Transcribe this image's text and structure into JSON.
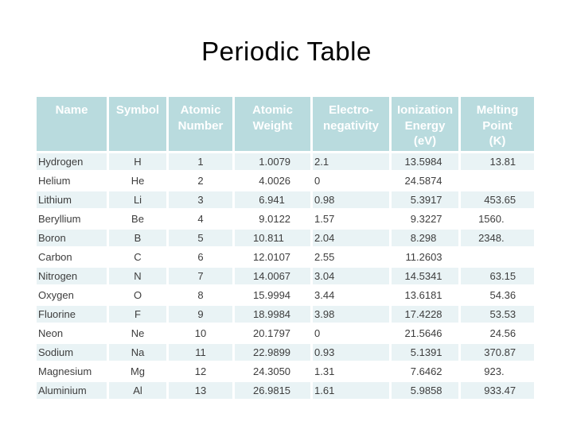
{
  "title": "Periodic Table",
  "theme": {
    "header_bg": "#b9dbde",
    "header_text": "#ffffff",
    "row_alt_bg": "#e9f3f5",
    "row_bg": "#ffffff",
    "cell_text": "#3d3d3d",
    "title_text": "#000000"
  },
  "table": {
    "columns": [
      {
        "key": "name",
        "label": "Name"
      },
      {
        "key": "symbol",
        "label": "Symbol"
      },
      {
        "key": "atomic-number",
        "label": "Atomic\nNumber"
      },
      {
        "key": "atomic-weight",
        "label": "Atomic\nWeight"
      },
      {
        "key": "electronegativity",
        "label": "Electro-\nnegativity"
      },
      {
        "key": "ionization-energy",
        "label": "Ionization\nEnergy\n(eV)"
      },
      {
        "key": "melting-point",
        "label": "Melting\nPoint\n(K)"
      }
    ],
    "rows": [
      [
        "Hydrogen",
        "H",
        "1",
        "1.0079",
        "2.1",
        "13.5984",
        "13.81"
      ],
      [
        "Helium",
        "He",
        "2",
        "4.0026",
        "0",
        "24.5874",
        ""
      ],
      [
        "Lithium",
        "Li",
        "3",
        "6.941",
        "0.98",
        "5.3917",
        "453.65"
      ],
      [
        "Beryllium",
        "Be",
        "4",
        "9.0122",
        "1.57",
        "9.3227",
        "1560."
      ],
      [
        "Boron",
        "B",
        "5",
        "10.811",
        "2.04",
        "8.298",
        "2348."
      ],
      [
        "Carbon",
        "C",
        "6",
        "12.0107",
        "2.55",
        "11.2603",
        ""
      ],
      [
        "Nitrogen",
        "N",
        "7",
        "14.0067",
        "3.04",
        "14.5341",
        "63.15"
      ],
      [
        "Oxygen",
        "O",
        "8",
        "15.9994",
        "3.44",
        "13.6181",
        "54.36"
      ],
      [
        "Fluorine",
        "F",
        "9",
        "18.9984",
        "3.98",
        "17.4228",
        "53.53"
      ],
      [
        "Neon",
        "Ne",
        "10",
        "20.1797",
        "0",
        "21.5646",
        "24.56"
      ],
      [
        "Sodium",
        "Na",
        "11",
        "22.9899",
        "0.93",
        "5.1391",
        "370.87"
      ],
      [
        "Magnesium",
        "Mg",
        "12",
        "24.3050",
        "1.31",
        "7.6462",
        "923."
      ],
      [
        "Aluminium",
        "Al",
        "13",
        "26.9815",
        "1.61",
        "5.9858",
        "933.47"
      ]
    ]
  }
}
